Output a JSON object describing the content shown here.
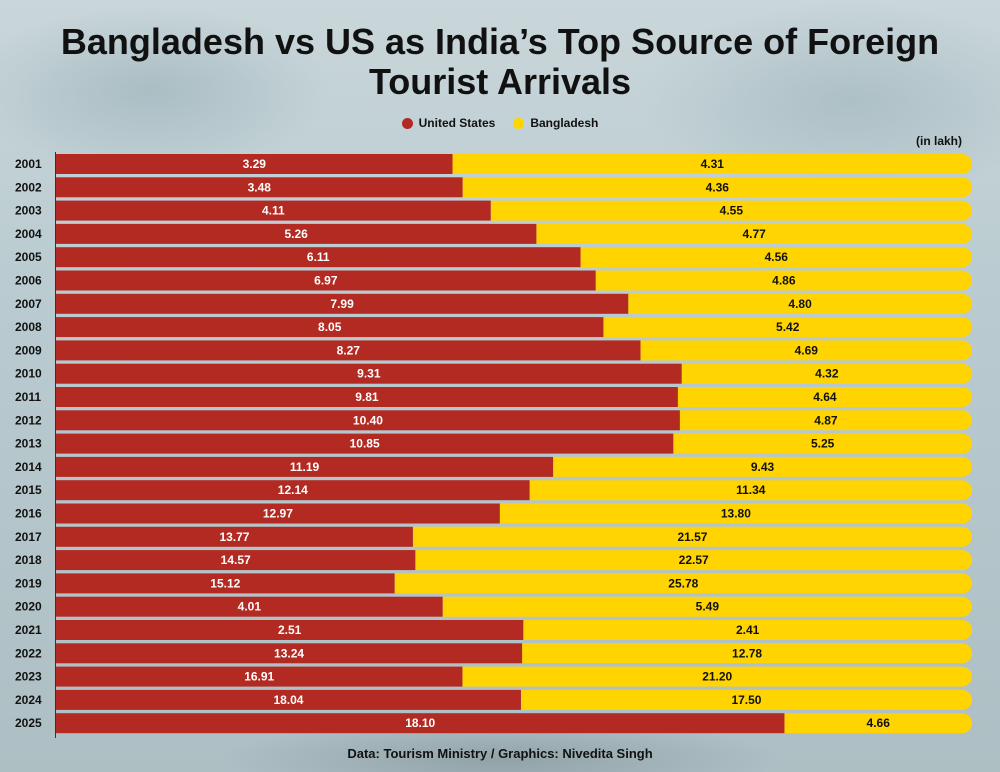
{
  "chart_data": {
    "type": "bar",
    "orientation": "horizontal",
    "stacked": "percent",
    "title": "Bangladesh vs US as India’s Top Source of Foreign Tourist Arrivals",
    "unit_label": "(in lakh)",
    "categories": [
      "2001",
      "2002",
      "2003",
      "2004",
      "2005",
      "2006",
      "2007",
      "2008",
      "2009",
      "2010",
      "2011",
      "2012",
      "2013",
      "2014",
      "2015",
      "2016",
      "2017",
      "2018",
      "2019",
      "2020",
      "2021",
      "2022",
      "2023",
      "2024",
      "2025"
    ],
    "series": [
      {
        "name": "United States",
        "color": "#b22a22",
        "values": [
          "3.29",
          "3.48",
          "4.11",
          "5.26",
          "6.11",
          "6.97",
          "7.99",
          "8.05",
          "8.27",
          "9.31",
          "9.81",
          "10.40",
          "10.85",
          "11.19",
          "12.14",
          "12.97",
          "13.77",
          "14.57",
          "15.12",
          "4.01",
          "2.51",
          "13.24",
          "16.91",
          "18.04",
          "18.10"
        ]
      },
      {
        "name": "Bangladesh",
        "color": "#ffd400",
        "values": [
          "4.31",
          "4.36",
          "4.55",
          "4.77",
          "4.56",
          "4.86",
          "4.80",
          "5.42",
          "4.69",
          "4.32",
          "4.64",
          "4.87",
          "5.25",
          "9.43",
          "11.34",
          "13.80",
          "21.57",
          "22.57",
          "25.78",
          "5.49",
          "2.41",
          "12.78",
          "21.20",
          "17.50",
          "4.66"
        ]
      }
    ],
    "legend_position": "top-center"
  },
  "footer": "Data: Tourism Ministry / Graphics: Nivedita Singh"
}
